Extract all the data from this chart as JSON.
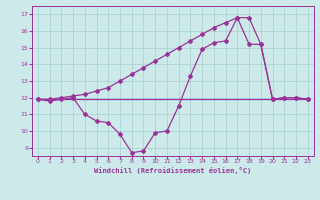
{
  "background_color": "#cdeaea",
  "line_color": "#993399",
  "grid_color": "#aacccc",
  "xlabel": "Windchill (Refroidissement éolien,°C)",
  "xlim_min": -0.5,
  "xlim_max": 23.5,
  "ylim_min": 8.5,
  "ylim_max": 17.5,
  "yticks": [
    9,
    10,
    11,
    12,
    13,
    14,
    15,
    16,
    17
  ],
  "xticks": [
    0,
    1,
    2,
    3,
    4,
    5,
    6,
    7,
    8,
    9,
    10,
    11,
    12,
    13,
    14,
    15,
    16,
    17,
    18,
    19,
    20,
    21,
    22,
    23
  ],
  "hours": [
    0,
    1,
    2,
    3,
    4,
    5,
    6,
    7,
    8,
    9,
    10,
    11,
    12,
    13,
    14,
    15,
    16,
    17,
    18,
    19,
    20,
    21,
    22,
    23
  ],
  "curve_wc": [
    11.9,
    11.8,
    11.9,
    12.0,
    11.0,
    10.6,
    10.5,
    9.8,
    8.7,
    8.8,
    9.9,
    10.0,
    11.5,
    13.3,
    14.9,
    15.3,
    15.4,
    16.8,
    16.8,
    15.2,
    11.9,
    12.0,
    12.0,
    11.9
  ],
  "curve_flat": [
    11.9,
    11.9,
    11.9,
    11.9,
    11.9,
    11.9,
    11.9,
    11.9,
    11.9,
    11.9,
    11.9,
    11.9,
    11.9,
    11.9,
    11.9,
    11.9,
    11.9,
    11.9,
    11.9,
    11.9,
    11.9,
    11.9,
    11.9,
    11.9
  ],
  "curve_diag": [
    11.9,
    11.9,
    12.0,
    12.1,
    12.2,
    12.4,
    12.6,
    13.0,
    13.4,
    13.8,
    14.2,
    14.6,
    15.0,
    15.4,
    15.8,
    16.2,
    16.5,
    16.8,
    15.2,
    15.2,
    11.9,
    12.0,
    12.0,
    11.9
  ]
}
